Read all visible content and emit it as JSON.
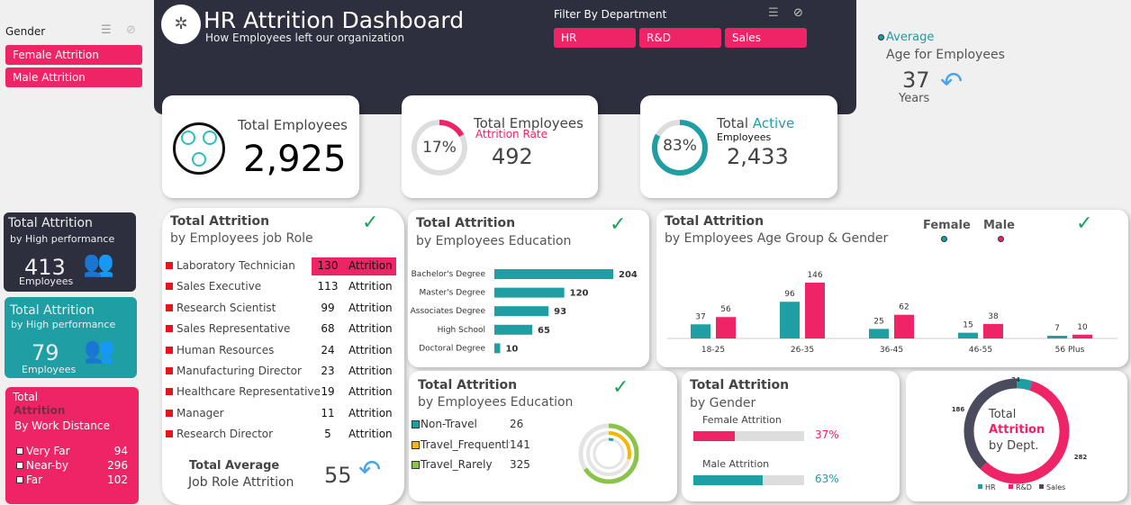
{
  "gender_slicer": {
    "title": "Gender",
    "items": [
      "Female Attrition",
      "Male Attrition"
    ]
  },
  "header": {
    "title": "HR Attrition Dashboard",
    "subtitle": "How Employees left our organization",
    "filter_title": "Filter By Department",
    "departments": [
      "HR",
      "R&D",
      "Sales"
    ]
  },
  "average_age": {
    "label": "Average",
    "sublabel": "Age for Employees",
    "value": "37",
    "unit": "Years"
  },
  "kpi_total": {
    "title": "Total Employees",
    "value": "2,925"
  },
  "kpi_rate": {
    "title": "Total Employees",
    "subtitle": "Attrition Rate",
    "percent": "17%",
    "rate": 17,
    "value": "492"
  },
  "kpi_active": {
    "title_a": "Total",
    "title_b": "Active",
    "subtitle": "Employees",
    "percent": "83%",
    "rate": 83,
    "value": "2,433"
  },
  "perf_dark": {
    "title": "Total Attrition",
    "subtitle": "by High performance",
    "value": "413",
    "unit": "Employees"
  },
  "perf_teal": {
    "title": "Total Attrition",
    "subtitle": "by High performance",
    "value": "79",
    "unit": "Employees"
  },
  "distance": {
    "title_a": "Total",
    "title_b": "Attrition",
    "subtitle": "By Work Distance",
    "rows": [
      {
        "label": "Very Far",
        "value": "94"
      },
      {
        "label": "Near-by",
        "value": "296"
      },
      {
        "label": "Far",
        "value": "102"
      }
    ]
  },
  "job_role": {
    "title": "Total Attrition",
    "subtitle": "by Employees job Role",
    "suffix": "Attrition",
    "rows": [
      {
        "role": "Laboratory Technician",
        "value": "130"
      },
      {
        "role": "Sales Executive",
        "value": "113"
      },
      {
        "role": "Research Scientist",
        "value": "99"
      },
      {
        "role": "Sales Representative",
        "value": "68"
      },
      {
        "role": "Human Resources",
        "value": "24"
      },
      {
        "role": "Manufacturing Director",
        "value": "23"
      },
      {
        "role": "Healthcare Representative",
        "value": "19"
      },
      {
        "role": "Manager",
        "value": "11"
      },
      {
        "role": "Research Director",
        "value": "5"
      }
    ],
    "avg_title": "Total Average",
    "avg_subtitle": "Job Role Attrition",
    "avg_value": "55"
  },
  "education": {
    "title": "Total Attrition",
    "subtitle": "by Employees Education"
  },
  "age_gender": {
    "title": "Total Attrition",
    "subtitle": "by Employees Age Group & Gender",
    "legend": [
      "Female",
      "Male"
    ]
  },
  "travel": {
    "title": "Total Attrition",
    "subtitle": "by Employees Education",
    "rows": [
      {
        "label": "Non-Travel",
        "value": "26",
        "color": "#1f9ea3"
      },
      {
        "label": "Travel_Frequently",
        "value": "141",
        "color": "#f5b700"
      },
      {
        "label": "Travel_Rarely",
        "value": "325",
        "color": "#8bc34a"
      }
    ]
  },
  "gender": {
    "title": "Total Attrition",
    "subtitle": "by Gender",
    "rows": [
      {
        "label": "Female Attrition",
        "percent": "37%",
        "value": 37,
        "color": "#ef2466"
      },
      {
        "label": "Male Attrition",
        "percent": "63%",
        "value": 63,
        "color": "#1f9ea3"
      }
    ]
  },
  "dept": {
    "center_a": "Total",
    "center_b": "Attrition",
    "center_c": "by Dept."
  },
  "colors": {
    "dark": "#2e2f3e",
    "pink": "#ef2466",
    "teal": "#1f9ea3"
  },
  "chart_data": [
    {
      "type": "bar",
      "orientation": "horizontal",
      "categories": [
        "Bachelor's Degree",
        "Master's Degree",
        "Associates Degree",
        "High School",
        "Doctoral Degree"
      ],
      "values": [
        204,
        120,
        93,
        65,
        10
      ]
    },
    {
      "type": "bar",
      "categories": [
        "18-25",
        "26-35",
        "36-45",
        "46-55",
        "56 Plus"
      ],
      "series": [
        {
          "name": "Female",
          "values": [
            37,
            96,
            25,
            15,
            7
          ]
        },
        {
          "name": "Male",
          "values": [
            56,
            146,
            62,
            38,
            10
          ]
        }
      ],
      "legend": "top-right"
    },
    {
      "type": "pie",
      "donut": true,
      "categories": [
        "HR",
        "R&D",
        "Sales"
      ],
      "values": [
        24,
        282,
        186
      ],
      "legend": "bottom"
    }
  ]
}
